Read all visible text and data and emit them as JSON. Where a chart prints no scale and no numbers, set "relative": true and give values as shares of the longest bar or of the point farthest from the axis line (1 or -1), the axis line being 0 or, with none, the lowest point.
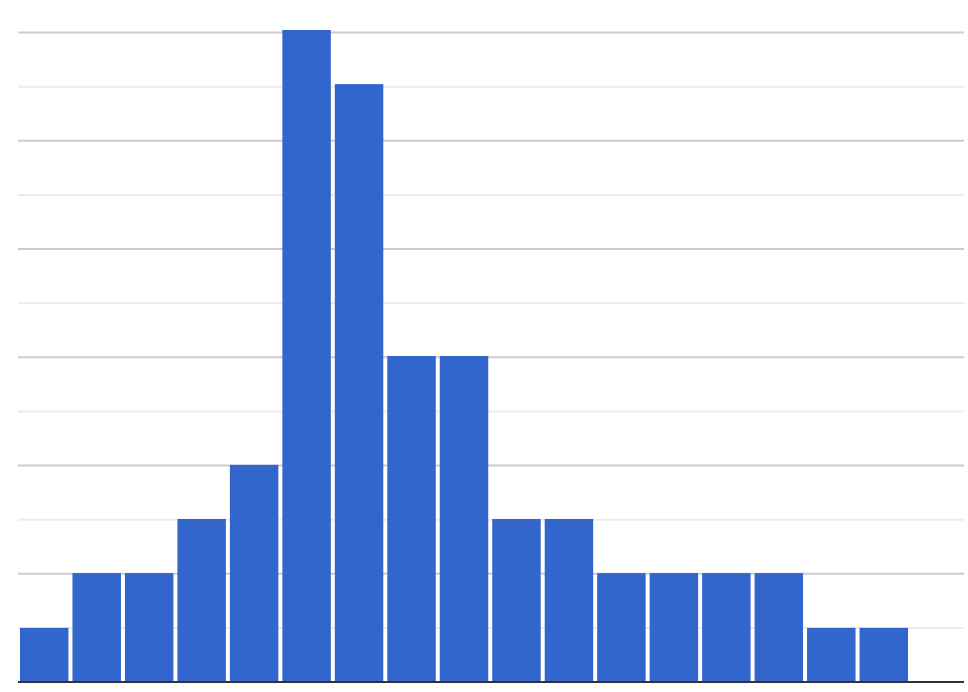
{
  "chart_data": {
    "type": "bar",
    "relative": true,
    "categories": [
      null,
      null,
      null,
      null,
      null,
      null,
      null,
      null,
      null,
      null,
      null,
      null,
      null,
      null,
      null,
      null,
      null
    ],
    "values": [
      0.083,
      0.167,
      0.167,
      0.25,
      0.333,
      1,
      0.917,
      0.5,
      0.5,
      0.25,
      0.25,
      0.167,
      0.167,
      0.167,
      0.167,
      0.083,
      0.083
    ],
    "color": "#3366cc",
    "grid": "y"
  }
}
